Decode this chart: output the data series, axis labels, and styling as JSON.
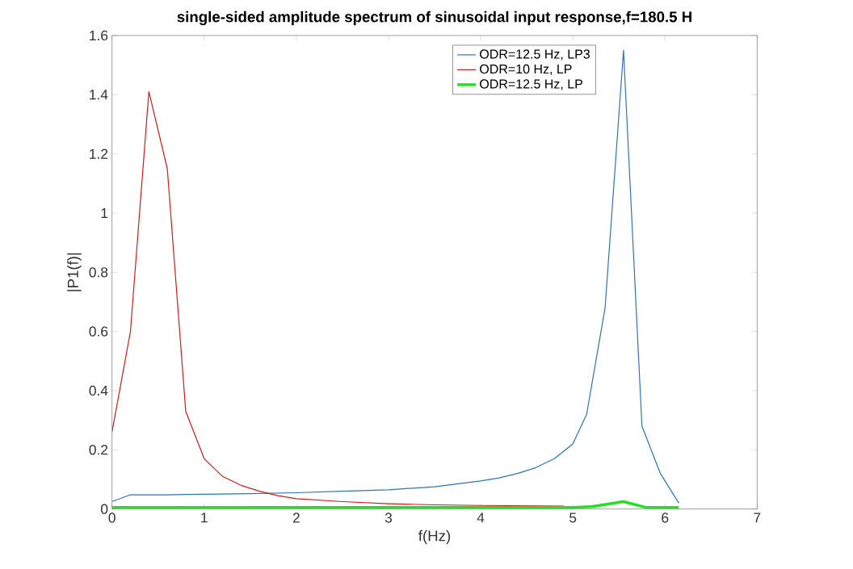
{
  "chart_data": {
    "type": "line",
    "title": "single-sided amplitude spectrum of sinusoidal input response,f=180.5 H",
    "xlabel": "f(Hz)",
    "ylabel": "|P1(f)|",
    "xlim": [
      0,
      7
    ],
    "ylim": [
      0,
      1.6
    ],
    "xticks": [
      0,
      1,
      2,
      3,
      4,
      5,
      6,
      7
    ],
    "yticks": [
      0,
      0.2,
      0.4,
      0.6,
      0.8,
      1,
      1.2,
      1.4,
      1.6
    ],
    "legend": "top right",
    "grid": false,
    "series": [
      {
        "name": "ODR=12.5 Hz, LP3",
        "color": "#2f74b5",
        "x": [
          0,
          0.2,
          0.4,
          0.6,
          0.8,
          1,
          1.5,
          2,
          2.5,
          3,
          3.5,
          4,
          4.2,
          4.4,
          4.6,
          4.8,
          5,
          5.15,
          5.35,
          5.55,
          5.75,
          5.95,
          6.15
        ],
        "values": [
          0.025,
          0.048,
          0.048,
          0.048,
          0.049,
          0.05,
          0.052,
          0.055,
          0.06,
          0.065,
          0.075,
          0.095,
          0.105,
          0.12,
          0.14,
          0.17,
          0.22,
          0.32,
          0.68,
          1.55,
          0.28,
          0.12,
          0.02
        ]
      },
      {
        "name": "ODR=10 Hz, LP",
        "color": "#d01c1c",
        "x": [
          0,
          0.2,
          0.4,
          0.6,
          0.8,
          1,
          1.2,
          1.4,
          1.6,
          1.8,
          2,
          2.5,
          3,
          3.5,
          4,
          4.9
        ],
        "values": [
          0.26,
          0.6,
          1.41,
          1.15,
          0.33,
          0.17,
          0.11,
          0.08,
          0.06,
          0.045,
          0.035,
          0.025,
          0.018,
          0.014,
          0.012,
          0.01
        ]
      },
      {
        "name": "ODR=12.5 Hz, LP",
        "color": "#22e022",
        "x": [
          0,
          1,
          2,
          3,
          4,
          5,
          5.2,
          5.55,
          5.8,
          6,
          6.15
        ],
        "values": [
          0.005,
          0.005,
          0.005,
          0.005,
          0.005,
          0.005,
          0.008,
          0.025,
          0.005,
          0.005,
          0.005
        ]
      }
    ]
  }
}
